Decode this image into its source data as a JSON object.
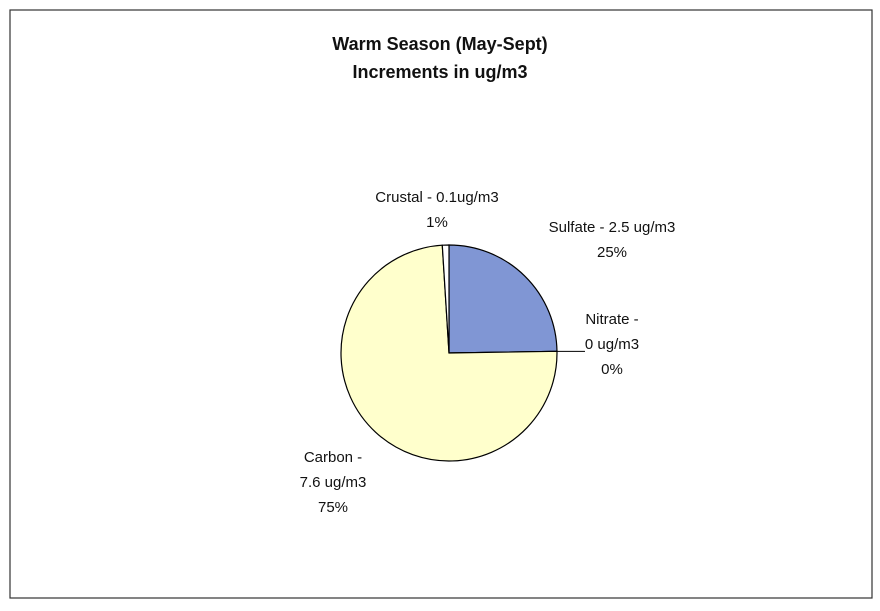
{
  "chart_data": {
    "type": "pie",
    "title": [
      "Warm Season (May-Sept)",
      "Increments in ug/m3"
    ],
    "categories": [
      [
        "Sulfate - 2.5 ug/m3"
      ],
      [
        "Nitrate -",
        "0 ug/m3"
      ],
      [
        "Carbon -",
        "7.6 ug/m3"
      ],
      [
        "Crustal - 0.1ug/m3"
      ]
    ],
    "values": [
      25,
      0,
      75,
      1
    ],
    "value_labels": [
      "25%",
      "0%",
      "75%",
      "1%"
    ],
    "colors": [
      "#8096d4",
      "#993366",
      "#ffffcc",
      "#ffffff"
    ]
  }
}
